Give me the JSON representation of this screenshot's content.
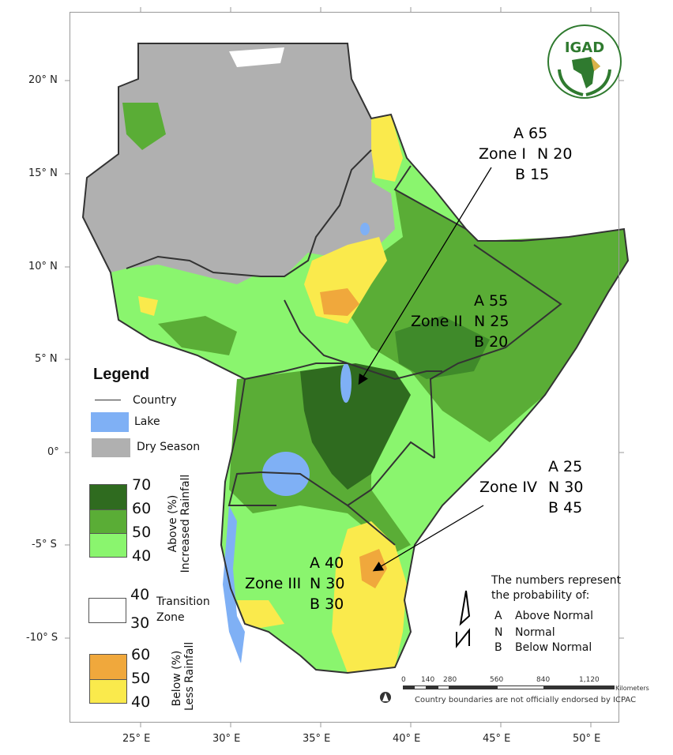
{
  "axes": {
    "latitude_ticks": [
      "20° N",
      "15° N",
      "10° N",
      "5° N",
      "0°",
      "-5° S",
      "-10° S"
    ],
    "longitude_ticks": [
      "25° E",
      "30° E",
      "35° E",
      "40° E",
      "45° E",
      "50° E"
    ]
  },
  "logo": {
    "text": "IGAD",
    "ring_text": "Intergovernmental Authority on Development",
    "ring_text_fr": "Autorité Intergouvernementale pour le Développement"
  },
  "colors": {
    "above_70": "#2f6b1f",
    "above_60": "#5aad36",
    "above_50": "#8af56e",
    "transition": "#ffffff",
    "below_60": "#f0a83c",
    "below_50": "#faea4c",
    "lake": "#7fb0f5",
    "dry_season": "#b0b0b0",
    "border": "#333333"
  },
  "zones": [
    {
      "name": "Zone I",
      "A": "A 65",
      "N": "N 20",
      "B": "B 15"
    },
    {
      "name": "Zone II",
      "A": "A 55",
      "N": "N 25",
      "B": "B 20"
    },
    {
      "name": "Zone III",
      "A": "A 40",
      "N": "N 30",
      "B": "B 30"
    },
    {
      "name": "Zone IV",
      "A": "A 25",
      "N": "N 30",
      "B": "B 45"
    }
  ],
  "legend": {
    "title": "Legend",
    "country": "Country",
    "lake": "Lake",
    "dry_season": "Dry Season",
    "above": {
      "values": [
        "70",
        "60",
        "50",
        "40"
      ],
      "label1": "Above (%)",
      "label2": "Increased Rainfall"
    },
    "transition": {
      "values": [
        "40",
        "30"
      ],
      "label1": "Transition",
      "label2": "Zone"
    },
    "below": {
      "values": [
        "60",
        "50",
        "40"
      ],
      "label1": "Below (%)",
      "label2": "Less Rainfall"
    }
  },
  "notes": {
    "line1": "The numbers represent",
    "line2": "the probability of:",
    "items": [
      {
        "key": "A",
        "label": "Above Normal"
      },
      {
        "key": "N",
        "label": "Normal"
      },
      {
        "key": "B",
        "label": "Below Normal"
      }
    ]
  },
  "scale_bar": {
    "labels": [
      "0",
      "140",
      "280",
      "560",
      "840",
      "1,120"
    ],
    "unit": "Kilometers"
  },
  "disclaimer": "Country boundaries are not officially endorsed by ICPAC"
}
